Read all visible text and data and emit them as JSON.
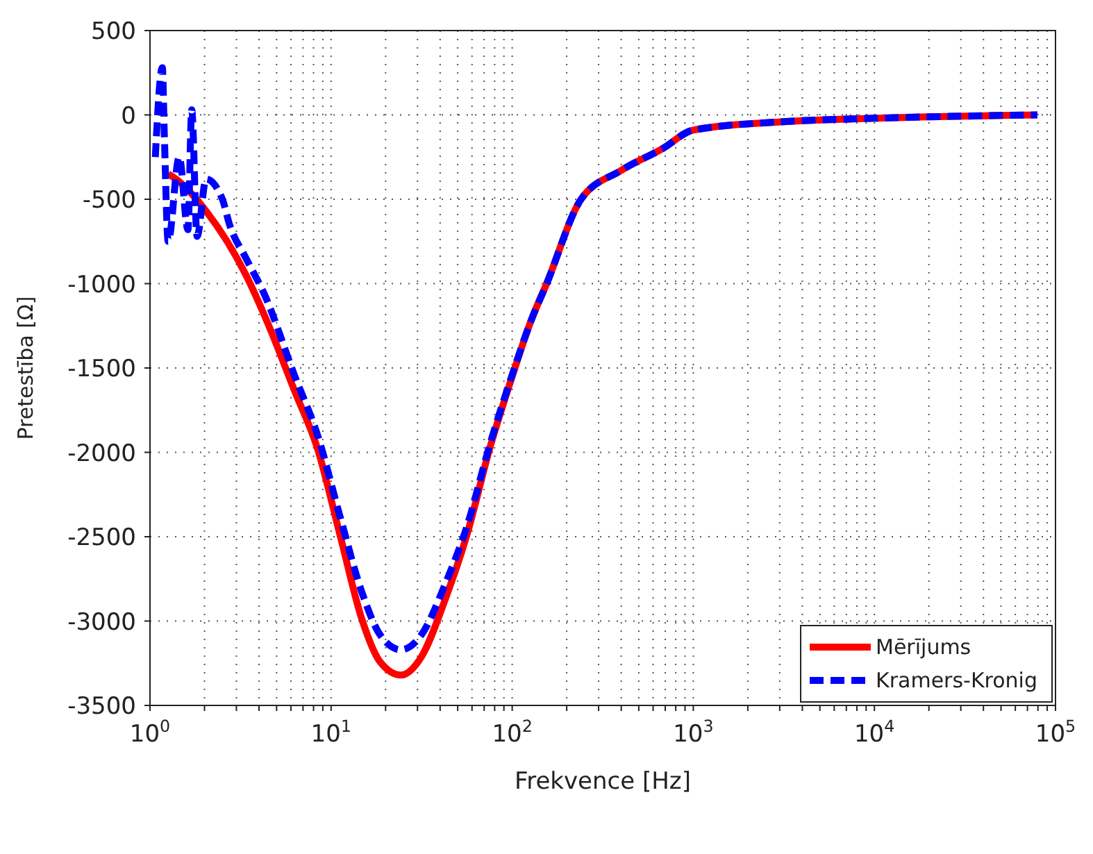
{
  "chart_data": {
    "type": "line",
    "xlabel": "Frekvence  [Hz]",
    "ylabel": "Pretestība  [Ω]",
    "log": "x",
    "grid": true,
    "legend": "bottom right",
    "xlim": [
      1,
      100000
    ],
    "ylim": [
      -3500,
      500
    ],
    "xticks": [
      {
        "value": 1,
        "label": "10$^{0}$"
      },
      {
        "value": 2,
        "label": null
      },
      {
        "value": 3,
        "label": null
      },
      {
        "value": 4,
        "label": null
      },
      {
        "value": 5,
        "label": null
      },
      {
        "value": 6,
        "label": null
      },
      {
        "value": 7,
        "label": null
      },
      {
        "value": 8,
        "label": null
      },
      {
        "value": 9,
        "label": null
      },
      {
        "value": 10,
        "label": "10$^{1}$"
      },
      {
        "value": 20,
        "label": null
      },
      {
        "value": 30,
        "label": null
      },
      {
        "value": 40,
        "label": null
      },
      {
        "value": 50,
        "label": null
      },
      {
        "value": 60,
        "label": null
      },
      {
        "value": 70,
        "label": null
      },
      {
        "value": 80,
        "label": null
      },
      {
        "value": 90,
        "label": null
      },
      {
        "value": 100,
        "label": "10$^{2}$"
      },
      {
        "value": 200,
        "label": null
      },
      {
        "value": 300,
        "label": null
      },
      {
        "value": 400,
        "label": null
      },
      {
        "value": 500,
        "label": null
      },
      {
        "value": 600,
        "label": null
      },
      {
        "value": 700,
        "label": null
      },
      {
        "value": 800,
        "label": null
      },
      {
        "value": 900,
        "label": null
      },
      {
        "value": 1000,
        "label": "10$^{3}$"
      },
      {
        "value": 2000,
        "label": null
      },
      {
        "value": 3000,
        "label": null
      },
      {
        "value": 4000,
        "label": null
      },
      {
        "value": 5000,
        "label": null
      },
      {
        "value": 6000,
        "label": null
      },
      {
        "value": 7000,
        "label": null
      },
      {
        "value": 8000,
        "label": null
      },
      {
        "value": 9000,
        "label": null
      },
      {
        "value": 10000,
        "label": "10$^{4}$"
      },
      {
        "value": 20000,
        "label": null
      },
      {
        "value": 30000,
        "label": null
      },
      {
        "value": 40000,
        "label": null
      },
      {
        "value": 50000,
        "label": null
      },
      {
        "value": 60000,
        "label": null
      },
      {
        "value": 70000,
        "label": null
      },
      {
        "value": 80000,
        "label": null
      },
      {
        "value": 90000,
        "label": null
      },
      {
        "value": 100000,
        "label": "10$^{5}$"
      }
    ],
    "yticks": [
      -3500,
      -3000,
      -2500,
      -2000,
      -1500,
      -1000,
      -500,
      0,
      500
    ],
    "series": [
      {
        "name": "Mērījums",
        "color": "#ff0000",
        "line_style": "solid",
        "x": [
          1.26,
          1.39,
          2.04,
          3.39,
          4.45,
          6.31,
          8.43,
          11.2,
          14.8,
          18.6,
          24.3,
          31.6,
          42.7,
          56.2,
          75,
          100,
          126,
          155,
          240,
          398,
          676,
          1000,
          3162,
          10000,
          79400
        ],
        "values": [
          -350,
          -380,
          -570,
          -950,
          -1230,
          -1640,
          -1980,
          -2490,
          -2990,
          -3240,
          -3320,
          -3210,
          -2870,
          -2490,
          -1980,
          -1550,
          -1230,
          -1000,
          -500,
          -330,
          -200,
          -90,
          -40,
          -20,
          0
        ]
      },
      {
        "name": "Kramers-Kronig",
        "color": "#0000ff",
        "line_style": "dashed",
        "x": [
          1.07,
          1.17,
          1.2,
          1.26,
          1.45,
          1.62,
          1.7,
          1.82,
          2.04,
          2.51,
          2.75,
          3.39,
          4.27,
          6.31,
          8.43,
          11.2,
          14.8,
          18.6,
          24.3,
          31.6,
          42.7,
          56.2,
          75,
          100,
          126,
          155,
          240,
          398,
          676,
          1000,
          3162,
          10000,
          79400
        ],
        "values": [
          -250,
          280,
          -120,
          -750,
          -250,
          -680,
          30,
          -720,
          -380,
          -500,
          -650,
          -850,
          -1060,
          -1550,
          -1900,
          -2380,
          -2830,
          -3080,
          -3170,
          -3080,
          -2780,
          -2440,
          -1960,
          -1540,
          -1230,
          -1000,
          -500,
          -330,
          -200,
          -90,
          -40,
          -20,
          0
        ]
      }
    ]
  }
}
